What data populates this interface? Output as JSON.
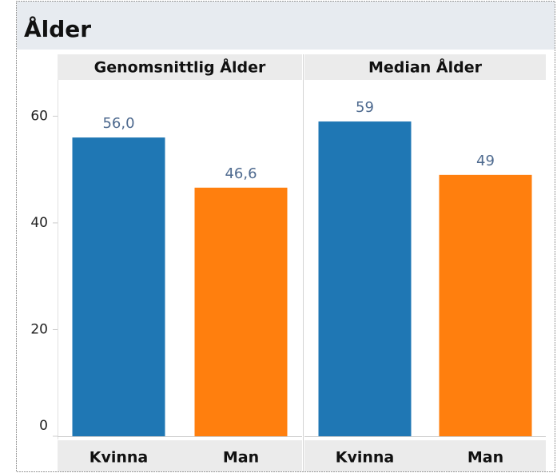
{
  "title": "Ålder",
  "chart_data": [
    {
      "type": "bar",
      "title": "Genomsnittlig Ålder",
      "categories": [
        "Kvinna",
        "Man"
      ],
      "values": [
        56.0,
        46.6
      ],
      "value_labels": [
        "56,0",
        "46,6"
      ],
      "colors": [
        "#1f77b4",
        "#ff7f0e"
      ],
      "ylim": [
        0,
        66.8
      ],
      "yticks": [
        0,
        20,
        40,
        60
      ]
    },
    {
      "type": "bar",
      "title": "Median Ålder",
      "categories": [
        "Kvinna",
        "Man"
      ],
      "values": [
        59,
        49
      ],
      "colors": [
        "#1f77b4",
        "#ff7f0e"
      ],
      "ylim": [
        0,
        66.8
      ]
    }
  ]
}
